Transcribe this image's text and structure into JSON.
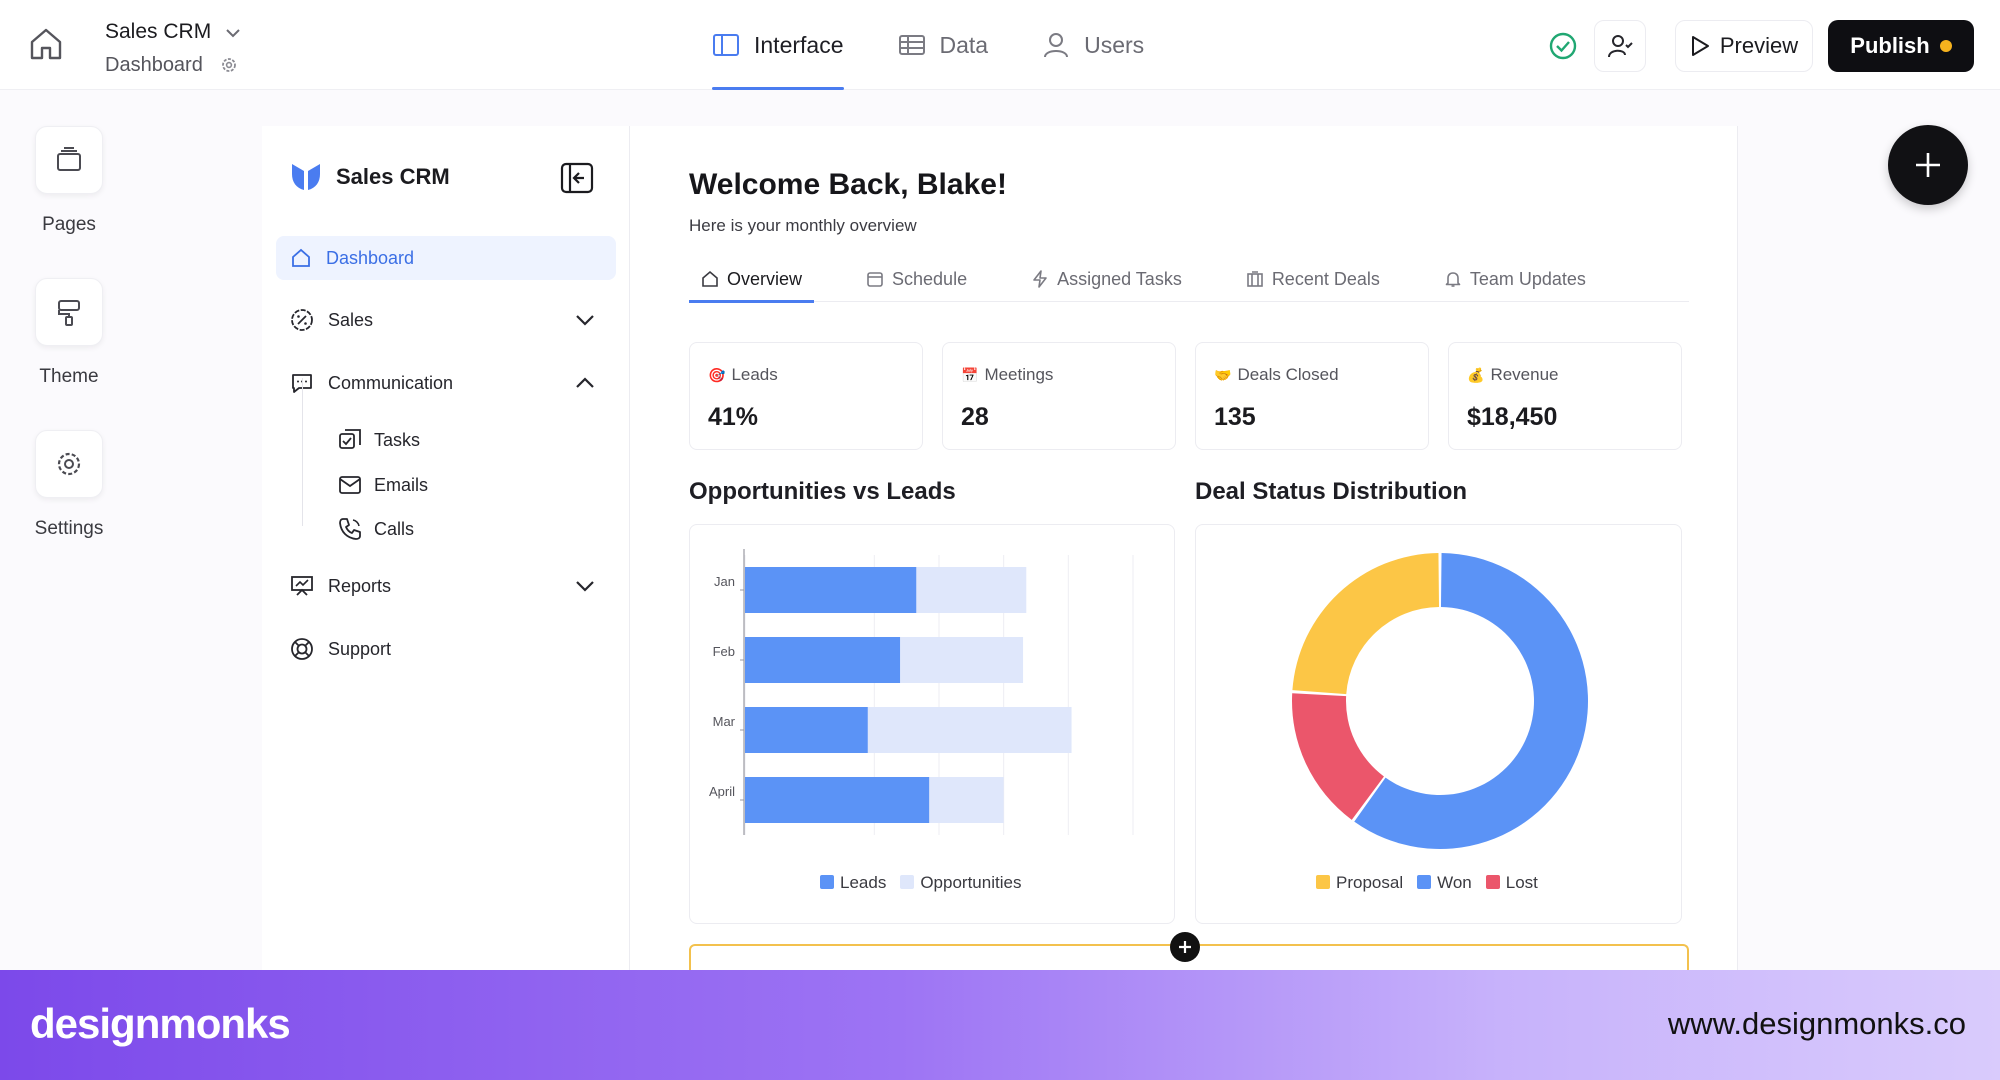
{
  "header": {
    "app_name": "Sales CRM",
    "page_name": "Dashboard",
    "tabs": [
      {
        "label": "Interface",
        "icon": "layout-icon",
        "active": true
      },
      {
        "label": "Data",
        "icon": "table-icon",
        "active": false
      },
      {
        "label": "Users",
        "icon": "user-icon",
        "active": false
      }
    ],
    "preview_label": "Preview",
    "publish_label": "Publish"
  },
  "rail": {
    "items": [
      {
        "label": "Pages",
        "icon": "pages-icon"
      },
      {
        "label": "Theme",
        "icon": "paint-roller-icon"
      },
      {
        "label": "Settings",
        "icon": "gear-icon"
      }
    ]
  },
  "sidebar": {
    "brand": "Sales CRM",
    "items": [
      {
        "label": "Dashboard",
        "icon": "home-icon",
        "active": true
      },
      {
        "label": "Sales",
        "icon": "percent-badge-icon",
        "expanded": false
      },
      {
        "label": "Communication",
        "icon": "chat-icon",
        "expanded": true
      },
      {
        "label": "Reports",
        "icon": "presentation-icon",
        "expanded": false
      },
      {
        "label": "Support",
        "icon": "lifebuoy-icon"
      }
    ],
    "sub_items": [
      {
        "label": "Tasks",
        "icon": "tasks-icon"
      },
      {
        "label": "Emails",
        "icon": "mail-icon"
      },
      {
        "label": "Calls",
        "icon": "phone-icon"
      }
    ]
  },
  "main": {
    "welcome": "Welcome Back, Blake!",
    "subtitle": "Here is your monthly overview",
    "tabs": [
      {
        "label": "Overview",
        "icon": "home-icon",
        "active": true
      },
      {
        "label": "Schedule",
        "icon": "calendar-icon",
        "active": false
      },
      {
        "label": "Assigned Tasks",
        "icon": "bolt-icon",
        "active": false
      },
      {
        "label": "Recent Deals",
        "icon": "building-icon",
        "active": false
      },
      {
        "label": "Team Updates",
        "icon": "bell-icon",
        "active": false
      }
    ],
    "stats": [
      {
        "label": "Leads",
        "value": "41%",
        "emoji": "🎯"
      },
      {
        "label": "Meetings",
        "value": "28",
        "emoji": "📅"
      },
      {
        "label": "Deals Closed",
        "value": "135",
        "emoji": "🤝"
      },
      {
        "label": "Revenue",
        "value": "$18,450",
        "emoji": "💰"
      }
    ]
  },
  "colors": {
    "leads": "#5b93f6",
    "opportunities": "#dfe7fb",
    "proposal": "#fcc646",
    "won": "#5b93f6",
    "lost": "#eb566b",
    "accent": "#4a7cf0"
  },
  "chart_data": [
    {
      "type": "bar",
      "orientation": "horizontal",
      "stacked": true,
      "title": "Opportunities vs Leads",
      "categories": [
        "Jan",
        "Feb",
        "Mar",
        "April"
      ],
      "series": [
        {
          "name": "Leads",
          "values": [
            53,
            48,
            38,
            57
          ]
        },
        {
          "name": "Opportunities",
          "values": [
            34,
            38,
            63,
            23
          ]
        }
      ],
      "xlim": [
        0,
        120
      ],
      "xticks": [
        0,
        40,
        60,
        80,
        100,
        120
      ],
      "grid": true,
      "legend": "bottom"
    },
    {
      "type": "pie",
      "donut": true,
      "title": "Deal Status Distribution",
      "labels": [
        "Proposal",
        "Won",
        "Lost"
      ],
      "values": [
        24,
        60,
        16
      ],
      "legend": "bottom"
    }
  ],
  "footer": {
    "logo": "designmonks",
    "url": "www.designmonks.co"
  }
}
